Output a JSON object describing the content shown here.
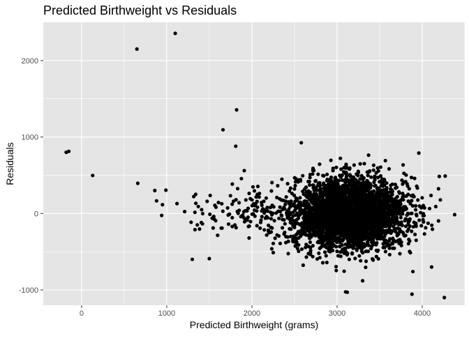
{
  "chart_data": {
    "type": "scatter",
    "title": "Predicted Birthweight vs Residuals",
    "xlabel": "Predicted Birthweight  (grams)",
    "ylabel": "Residuals",
    "xlim": [
      -450,
      4500
    ],
    "ylim": [
      -1200,
      2500
    ],
    "x_ticks": [
      0,
      1000,
      2000,
      3000,
      4000
    ],
    "x_tick_labels": [
      "0",
      "1000",
      "2000",
      "3000",
      "4000"
    ],
    "y_ticks": [
      -1000,
      0,
      1000,
      2000
    ],
    "y_tick_labels": [
      "-1000",
      "0",
      "1000",
      "2000"
    ],
    "grid": true,
    "panel_color": "#e5e5e5",
    "grid_color": "#ffffff",
    "point_color": "#000000",
    "outliers": [
      {
        "x": -180,
        "y": 800
      },
      {
        "x": -150,
        "y": 812
      },
      {
        "x": 130,
        "y": 497
      },
      {
        "x": 650,
        "y": 2150
      },
      {
        "x": 1100,
        "y": 2355
      },
      {
        "x": 660,
        "y": 395
      },
      {
        "x": 1820,
        "y": 1355
      },
      {
        "x": 1660,
        "y": 1095
      },
      {
        "x": 1810,
        "y": 880
      },
      {
        "x": 860,
        "y": 300
      },
      {
        "x": 990,
        "y": 305
      },
      {
        "x": 880,
        "y": 165
      },
      {
        "x": 950,
        "y": 115
      },
      {
        "x": 940,
        "y": -25
      },
      {
        "x": 1300,
        "y": -600
      },
      {
        "x": 1500,
        "y": -590
      },
      {
        "x": 3100,
        "y": -1025
      },
      {
        "x": 3120,
        "y": -1030
      },
      {
        "x": 3300,
        "y": -880
      },
      {
        "x": 3880,
        "y": -1055
      },
      {
        "x": 4260,
        "y": -1100
      },
      {
        "x": 3890,
        "y": -760
      },
      {
        "x": 4110,
        "y": -700
      },
      {
        "x": 4380,
        "y": -15
      },
      {
        "x": 4200,
        "y": 485
      },
      {
        "x": 4270,
        "y": 490
      },
      {
        "x": 3960,
        "y": 790
      },
      {
        "x": 2580,
        "y": 925
      },
      {
        "x": 1770,
        "y": 385
      },
      {
        "x": 1910,
        "y": 560
      },
      {
        "x": 1120,
        "y": 130
      },
      {
        "x": 1210,
        "y": 25
      },
      {
        "x": 1510,
        "y": 235
      },
      {
        "x": 1340,
        "y": 250
      }
    ],
    "cluster": {
      "x_center": 3150,
      "x_sd": 330,
      "y_center": 0,
      "y_sd": 230,
      "x_range": [
        2300,
        4350
      ],
      "y_range": [
        -780,
        880
      ],
      "n_points": 3400,
      "sparse_left": {
        "x_range": [
          1200,
          2300
        ],
        "y_center": 0,
        "y_sd": 160,
        "n_points": 130
      }
    }
  }
}
